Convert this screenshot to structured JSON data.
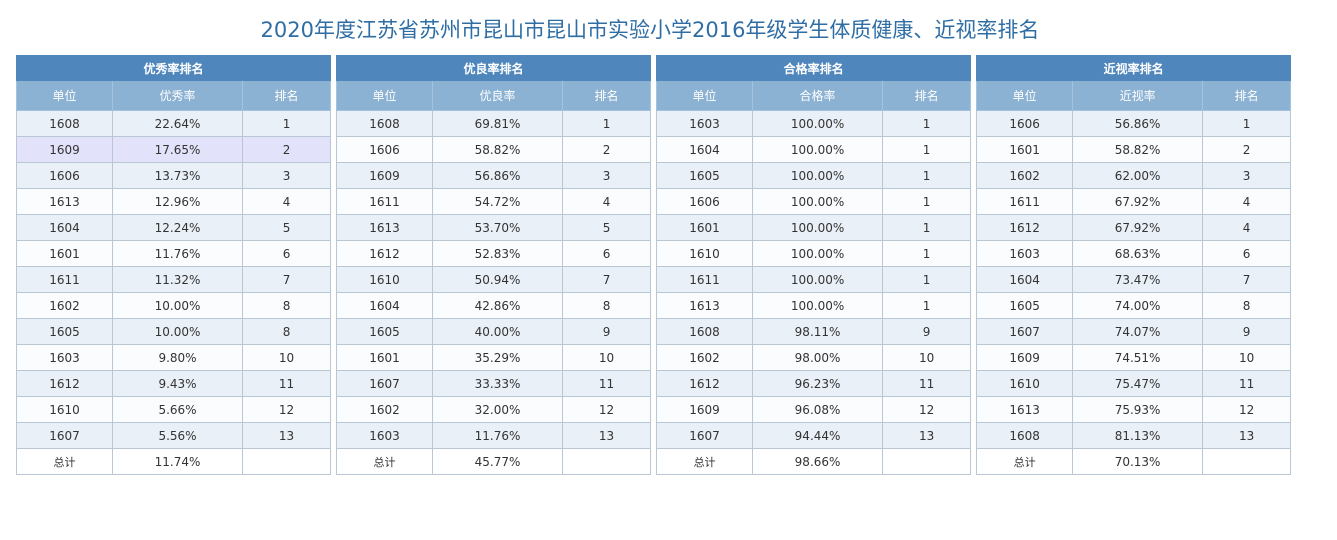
{
  "page": {
    "title": "2020年度江苏省苏州市昆山市昆山市实验小学2016年级学生体质健康、近视率排名"
  },
  "tables": [
    {
      "title": "优秀率排名",
      "headers": [
        "单位",
        "优秀率",
        "排名"
      ],
      "rows": [
        [
          "1608",
          "22.64%",
          "1"
        ],
        [
          "1609",
          "17.65%",
          "2"
        ],
        [
          "1606",
          "13.73%",
          "3"
        ],
        [
          "1613",
          "12.96%",
          "4"
        ],
        [
          "1604",
          "12.24%",
          "5"
        ],
        [
          "1601",
          "11.76%",
          "6"
        ],
        [
          "1611",
          "11.32%",
          "7"
        ],
        [
          "1602",
          "10.00%",
          "8"
        ],
        [
          "1605",
          "10.00%",
          "8"
        ],
        [
          "1603",
          "9.80%",
          "10"
        ],
        [
          "1612",
          "9.43%",
          "11"
        ],
        [
          "1610",
          "5.66%",
          "12"
        ],
        [
          "1607",
          "5.56%",
          "13"
        ]
      ],
      "total": [
        "总计",
        "11.74%",
        ""
      ]
    },
    {
      "title": "优良率排名",
      "headers": [
        "单位",
        "优良率",
        "排名"
      ],
      "rows": [
        [
          "1608",
          "69.81%",
          "1"
        ],
        [
          "1606",
          "58.82%",
          "2"
        ],
        [
          "1609",
          "56.86%",
          "3"
        ],
        [
          "1611",
          "54.72%",
          "4"
        ],
        [
          "1613",
          "53.70%",
          "5"
        ],
        [
          "1612",
          "52.83%",
          "6"
        ],
        [
          "1610",
          "50.94%",
          "7"
        ],
        [
          "1604",
          "42.86%",
          "8"
        ],
        [
          "1605",
          "40.00%",
          "9"
        ],
        [
          "1601",
          "35.29%",
          "10"
        ],
        [
          "1607",
          "33.33%",
          "11"
        ],
        [
          "1602",
          "32.00%",
          "12"
        ],
        [
          "1603",
          "11.76%",
          "13"
        ]
      ],
      "total": [
        "总计",
        "45.77%",
        ""
      ]
    },
    {
      "title": "合格率排名",
      "headers": [
        "单位",
        "合格率",
        "排名"
      ],
      "rows": [
        [
          "1603",
          "100.00%",
          "1"
        ],
        [
          "1604",
          "100.00%",
          "1"
        ],
        [
          "1605",
          "100.00%",
          "1"
        ],
        [
          "1606",
          "100.00%",
          "1"
        ],
        [
          "1601",
          "100.00%",
          "1"
        ],
        [
          "1610",
          "100.00%",
          "1"
        ],
        [
          "1611",
          "100.00%",
          "1"
        ],
        [
          "1613",
          "100.00%",
          "1"
        ],
        [
          "1608",
          "98.11%",
          "9"
        ],
        [
          "1602",
          "98.00%",
          "10"
        ],
        [
          "1612",
          "96.23%",
          "11"
        ],
        [
          "1609",
          "96.08%",
          "12"
        ],
        [
          "1607",
          "94.44%",
          "13"
        ]
      ],
      "total": [
        "总计",
        "98.66%",
        ""
      ]
    },
    {
      "title": "近视率排名",
      "headers": [
        "单位",
        "近视率",
        "排名"
      ],
      "rows": [
        [
          "1606",
          "56.86%",
          "1"
        ],
        [
          "1601",
          "58.82%",
          "2"
        ],
        [
          "1602",
          "62.00%",
          "3"
        ],
        [
          "1611",
          "67.92%",
          "4"
        ],
        [
          "1612",
          "67.92%",
          "4"
        ],
        [
          "1603",
          "68.63%",
          "6"
        ],
        [
          "1604",
          "73.47%",
          "7"
        ],
        [
          "1605",
          "74.00%",
          "8"
        ],
        [
          "1607",
          "74.07%",
          "9"
        ],
        [
          "1609",
          "74.51%",
          "10"
        ],
        [
          "1610",
          "75.47%",
          "11"
        ],
        [
          "1613",
          "75.93%",
          "12"
        ],
        [
          "1608",
          "81.13%",
          "13"
        ]
      ],
      "total": [
        "总计",
        "70.13%",
        ""
      ]
    }
  ],
  "colors": {
    "title_text": "#2f6ea5",
    "table_title_bg": "#4f87bd",
    "header_bg": "#8bb1d3",
    "row_odd_bg": "#eaf0f7",
    "row_even_bg": "#fbfcfe",
    "highlight_row_bg": "#e3e2fb"
  },
  "highlight": {
    "table_index": 0,
    "row_index": 1
  }
}
